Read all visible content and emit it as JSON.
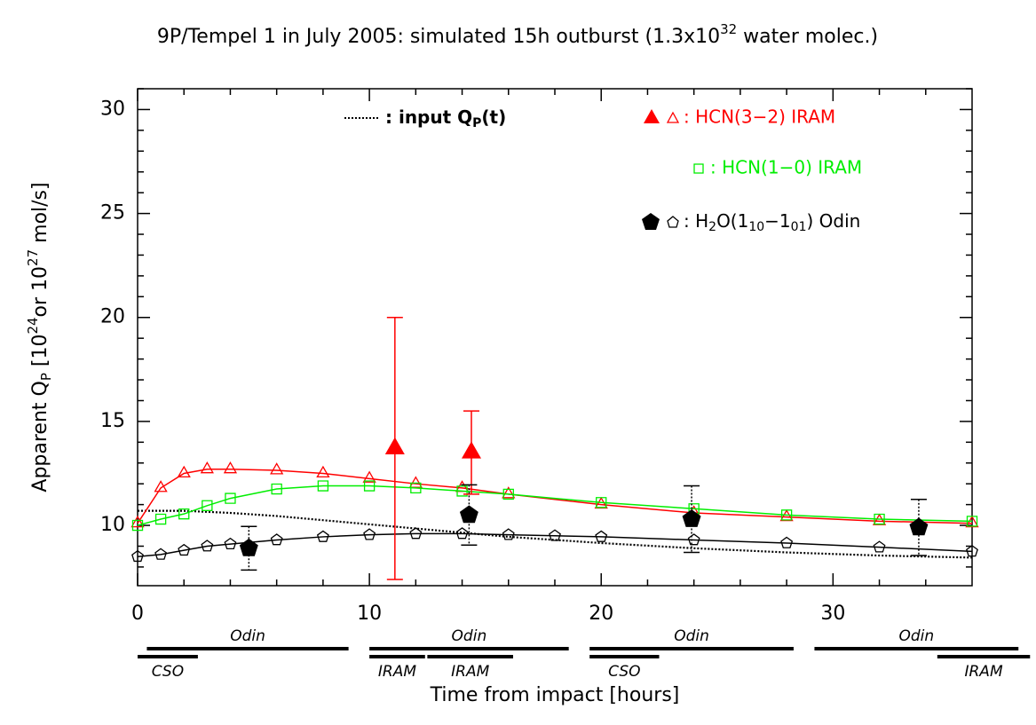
{
  "chart_data": {
    "type": "line",
    "title": [
      "9P/Tempel 1 in July 2005: simulated 15h outburst (1.3x10",
      "32",
      " water molec.)"
    ],
    "xlabel": "Time from impact [hours]",
    "ylabel": [
      "Apparent Q",
      "P",
      " [10",
      "24",
      "or 10",
      "27",
      " mol/s]"
    ],
    "xlim": [
      0,
      36
    ],
    "ylim": [
      7.1,
      31
    ],
    "xticks": [
      0,
      10,
      20,
      30
    ],
    "yticks": [
      10,
      15,
      20,
      25,
      30
    ],
    "xminor": [
      2,
      4,
      6,
      8,
      12,
      14,
      16,
      18,
      22,
      24,
      26,
      28,
      32,
      34
    ],
    "yminor": [
      8,
      9,
      11,
      12,
      13,
      14,
      16,
      17,
      18,
      19,
      21,
      22,
      23,
      24,
      26,
      27,
      28,
      29,
      31
    ],
    "series": [
      {
        "name": [
          ": input Q",
          "P",
          "(t)"
        ],
        "color": "#000000",
        "line": "dotted",
        "x": [
          0,
          2,
          4,
          6,
          8,
          10,
          12,
          14,
          16,
          20,
          24,
          28,
          32,
          36
        ],
        "values": [
          10.7,
          10.7,
          10.6,
          10.45,
          10.25,
          10.05,
          9.85,
          9.65,
          9.45,
          9.15,
          8.9,
          8.7,
          8.55,
          8.45
        ]
      },
      {
        "name": ": HCN(3−2) IRAM",
        "color": "#ff0000",
        "line": "solid",
        "marker": "triangle",
        "filled": false,
        "x": [
          0,
          1,
          2,
          3,
          4,
          6,
          8,
          10,
          12,
          14,
          16,
          20,
          24,
          28,
          32,
          36
        ],
        "values": [
          10.1,
          11.8,
          12.5,
          12.7,
          12.7,
          12.65,
          12.5,
          12.25,
          12.0,
          11.8,
          11.5,
          11.0,
          10.6,
          10.4,
          10.2,
          10.1
        ]
      },
      {
        "name": ": HCN(1−0) IRAM",
        "color": "#00ee00",
        "line": "solid",
        "marker": "square",
        "filled": false,
        "x": [
          0,
          1,
          2,
          3,
          4,
          6,
          8,
          10,
          12,
          14,
          16,
          20,
          24,
          28,
          32,
          36
        ],
        "values": [
          10.0,
          10.3,
          10.55,
          10.95,
          11.3,
          11.75,
          11.9,
          11.9,
          11.8,
          11.65,
          11.5,
          11.1,
          10.8,
          10.5,
          10.3,
          10.2
        ]
      },
      {
        "name": [
          ": H",
          "2",
          "O(1",
          "10",
          "−1",
          "01",
          ") Odin"
        ],
        "color": "#000000",
        "line": "solid",
        "marker": "pentagon",
        "filled": false,
        "x": [
          0,
          1,
          2,
          3,
          4,
          6,
          8,
          10,
          12,
          14,
          16,
          18,
          20,
          24,
          28,
          32,
          36
        ],
        "values": [
          8.5,
          8.6,
          8.8,
          9.0,
          9.1,
          9.3,
          9.45,
          9.55,
          9.6,
          9.6,
          9.55,
          9.5,
          9.45,
          9.3,
          9.15,
          8.95,
          8.75
        ]
      },
      {
        "color": "#ff0000",
        "marker": "triangle",
        "filled": true,
        "errorline": "solid",
        "x": [
          11.1,
          14.4
        ],
        "values": [
          13.7,
          13.5
        ],
        "errors": [
          6.3,
          2.0
        ]
      },
      {
        "color": "#000000",
        "marker": "pentagon",
        "filled": true,
        "errorline": "dotted",
        "x": [
          4.8,
          14.3,
          23.9,
          33.7
        ],
        "values": [
          8.9,
          10.5,
          10.3,
          9.9
        ],
        "errors": [
          1.05,
          1.45,
          1.6,
          1.35
        ]
      }
    ],
    "windows": [
      [
        {
          "label": "Odin",
          "start": 0.4,
          "end": 9.1
        },
        {
          "label": "Odin",
          "start": 10,
          "end": 18.6
        },
        {
          "label": "Odin",
          "start": 19.5,
          "end": 28.3
        },
        {
          "label": "Odin",
          "start": 29.2,
          "end": 38.0
        }
      ],
      [
        {
          "label": "CSO",
          "start": 0,
          "end": 2.6
        },
        {
          "label": "IRAM",
          "start": 10,
          "end": 12.4
        },
        {
          "label": "IRAM",
          "start": 12.5,
          "end": 16.2
        },
        {
          "label": "CSO",
          "start": 19.5,
          "end": 22.5
        },
        {
          "label": "IRAM",
          "start": 34.5,
          "end": 38.5
        }
      ]
    ]
  }
}
